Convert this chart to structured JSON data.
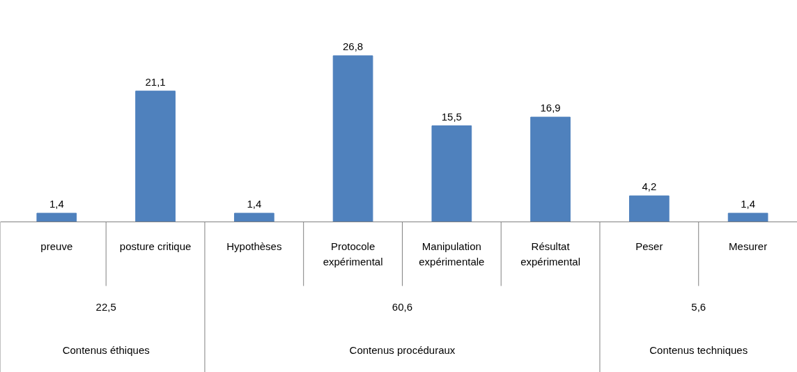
{
  "chart_data": {
    "type": "bar",
    "categories": [
      "preuve",
      "posture critique",
      "Hypothèses",
      "Protocole expérimental",
      "Manipulation expérimentale",
      "Résultat expérimental",
      "Peser",
      "Mesurer"
    ],
    "values": [
      1.4,
      21.1,
      1.4,
      26.8,
      15.5,
      16.9,
      4.2,
      1.4
    ],
    "value_labels": [
      "1,4",
      "21,1",
      "1,4",
      "26,8",
      "15,5",
      "16,9",
      "4,2",
      "1,4"
    ],
    "color": "#4f81bd",
    "annotations": [
      "22,5",
      "Contenus éthiques",
      "60,6",
      "Contenus procéduraux",
      "5,6",
      "Contenus techniques"
    ],
    "grid": false
  }
}
